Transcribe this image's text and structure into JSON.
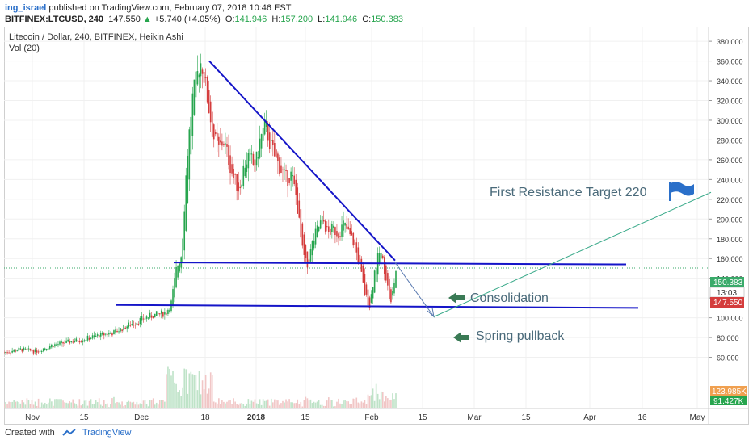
{
  "header": {
    "username": "ing_israel",
    "published": "published on TradingView.com, February 07, 2018 10:46 EST",
    "symbol": "BITFINEX:LTCUSD, 240",
    "last": "147.550",
    "change": "+5.740 (+4.05%)",
    "o_label": "O:",
    "o_value": "141.946",
    "h_label": "H:",
    "h_value": "157.200",
    "l_label": "L:",
    "l_value": "141.946",
    "c_label": "C:",
    "c_value": "150.383"
  },
  "footer": {
    "created": "Created with",
    "brand": "TradingView"
  },
  "chart_data": {
    "type": "candlestick",
    "title": "Litecoin / Dollar, 240, BITFINEX, Heikin Ashi",
    "subtitle": "Vol (20)",
    "y_ticks": [
      "380.000",
      "360.000",
      "340.000",
      "320.000",
      "300.000",
      "280.000",
      "260.000",
      "240.000",
      "220.000",
      "200.000",
      "180.000",
      "160.000",
      "140.000",
      "120.000",
      "100.000",
      "80.000",
      "60.000"
    ],
    "ylim": [
      40,
      385
    ],
    "x_ticks": [
      "Nov",
      "15",
      "Dec",
      "18",
      "2018",
      "15",
      "Feb",
      "15",
      "Mar",
      "15",
      "Apr",
      "16",
      "May"
    ],
    "price_labels": {
      "current": "150.383",
      "countdown": "13:03",
      "last": "147.550",
      "vol_ma": "123.985K",
      "vol": "91.427K"
    },
    "colors": {
      "up": "#27a54e",
      "down": "#d43c3c",
      "lines": "#1515c8",
      "target_line": "#3aaa8a",
      "arrow_icon": "#3a7a55",
      "flag": "#2a6fc9"
    },
    "price_path": [
      [
        0,
        65
      ],
      [
        3,
        68
      ],
      [
        6,
        66
      ],
      [
        9,
        72
      ],
      [
        12,
        75
      ],
      [
        15,
        78
      ],
      [
        18,
        82
      ],
      [
        21,
        85
      ],
      [
        24,
        93
      ],
      [
        27,
        100
      ],
      [
        29,
        103
      ],
      [
        31,
        105
      ],
      [
        32,
        115
      ],
      [
        33,
        150
      ],
      [
        34,
        165
      ],
      [
        35,
        260
      ],
      [
        36,
        320
      ],
      [
        37,
        345
      ],
      [
        37.5,
        360
      ],
      [
        38,
        355
      ],
      [
        39,
        320
      ],
      [
        40,
        285
      ],
      [
        41,
        270
      ],
      [
        42,
        280
      ],
      [
        43,
        260
      ],
      [
        44,
        240
      ],
      [
        45,
        230
      ],
      [
        46,
        255
      ],
      [
        47,
        265
      ],
      [
        48,
        250
      ],
      [
        49,
        280
      ],
      [
        50,
        295
      ],
      [
        51,
        275
      ],
      [
        52,
        260
      ],
      [
        53,
        250
      ],
      [
        54,
        240
      ],
      [
        55,
        245
      ],
      [
        56,
        220
      ],
      [
        57,
        170
      ],
      [
        58,
        150
      ],
      [
        59,
        175
      ],
      [
        60,
        190
      ],
      [
        61,
        200
      ],
      [
        62,
        185
      ],
      [
        63,
        190
      ],
      [
        64,
        185
      ],
      [
        65,
        195
      ],
      [
        66,
        185
      ],
      [
        67,
        175
      ],
      [
        68,
        155
      ],
      [
        69,
        125
      ],
      [
        70,
        112
      ],
      [
        71,
        150
      ],
      [
        72,
        168
      ],
      [
        73,
        145
      ],
      [
        74,
        112
      ],
      [
        75,
        148
      ]
    ],
    "annotations": {
      "target": "First Resistance Target 220",
      "consolidation": "Consolidation",
      "spring": "Spring pullback"
    }
  }
}
